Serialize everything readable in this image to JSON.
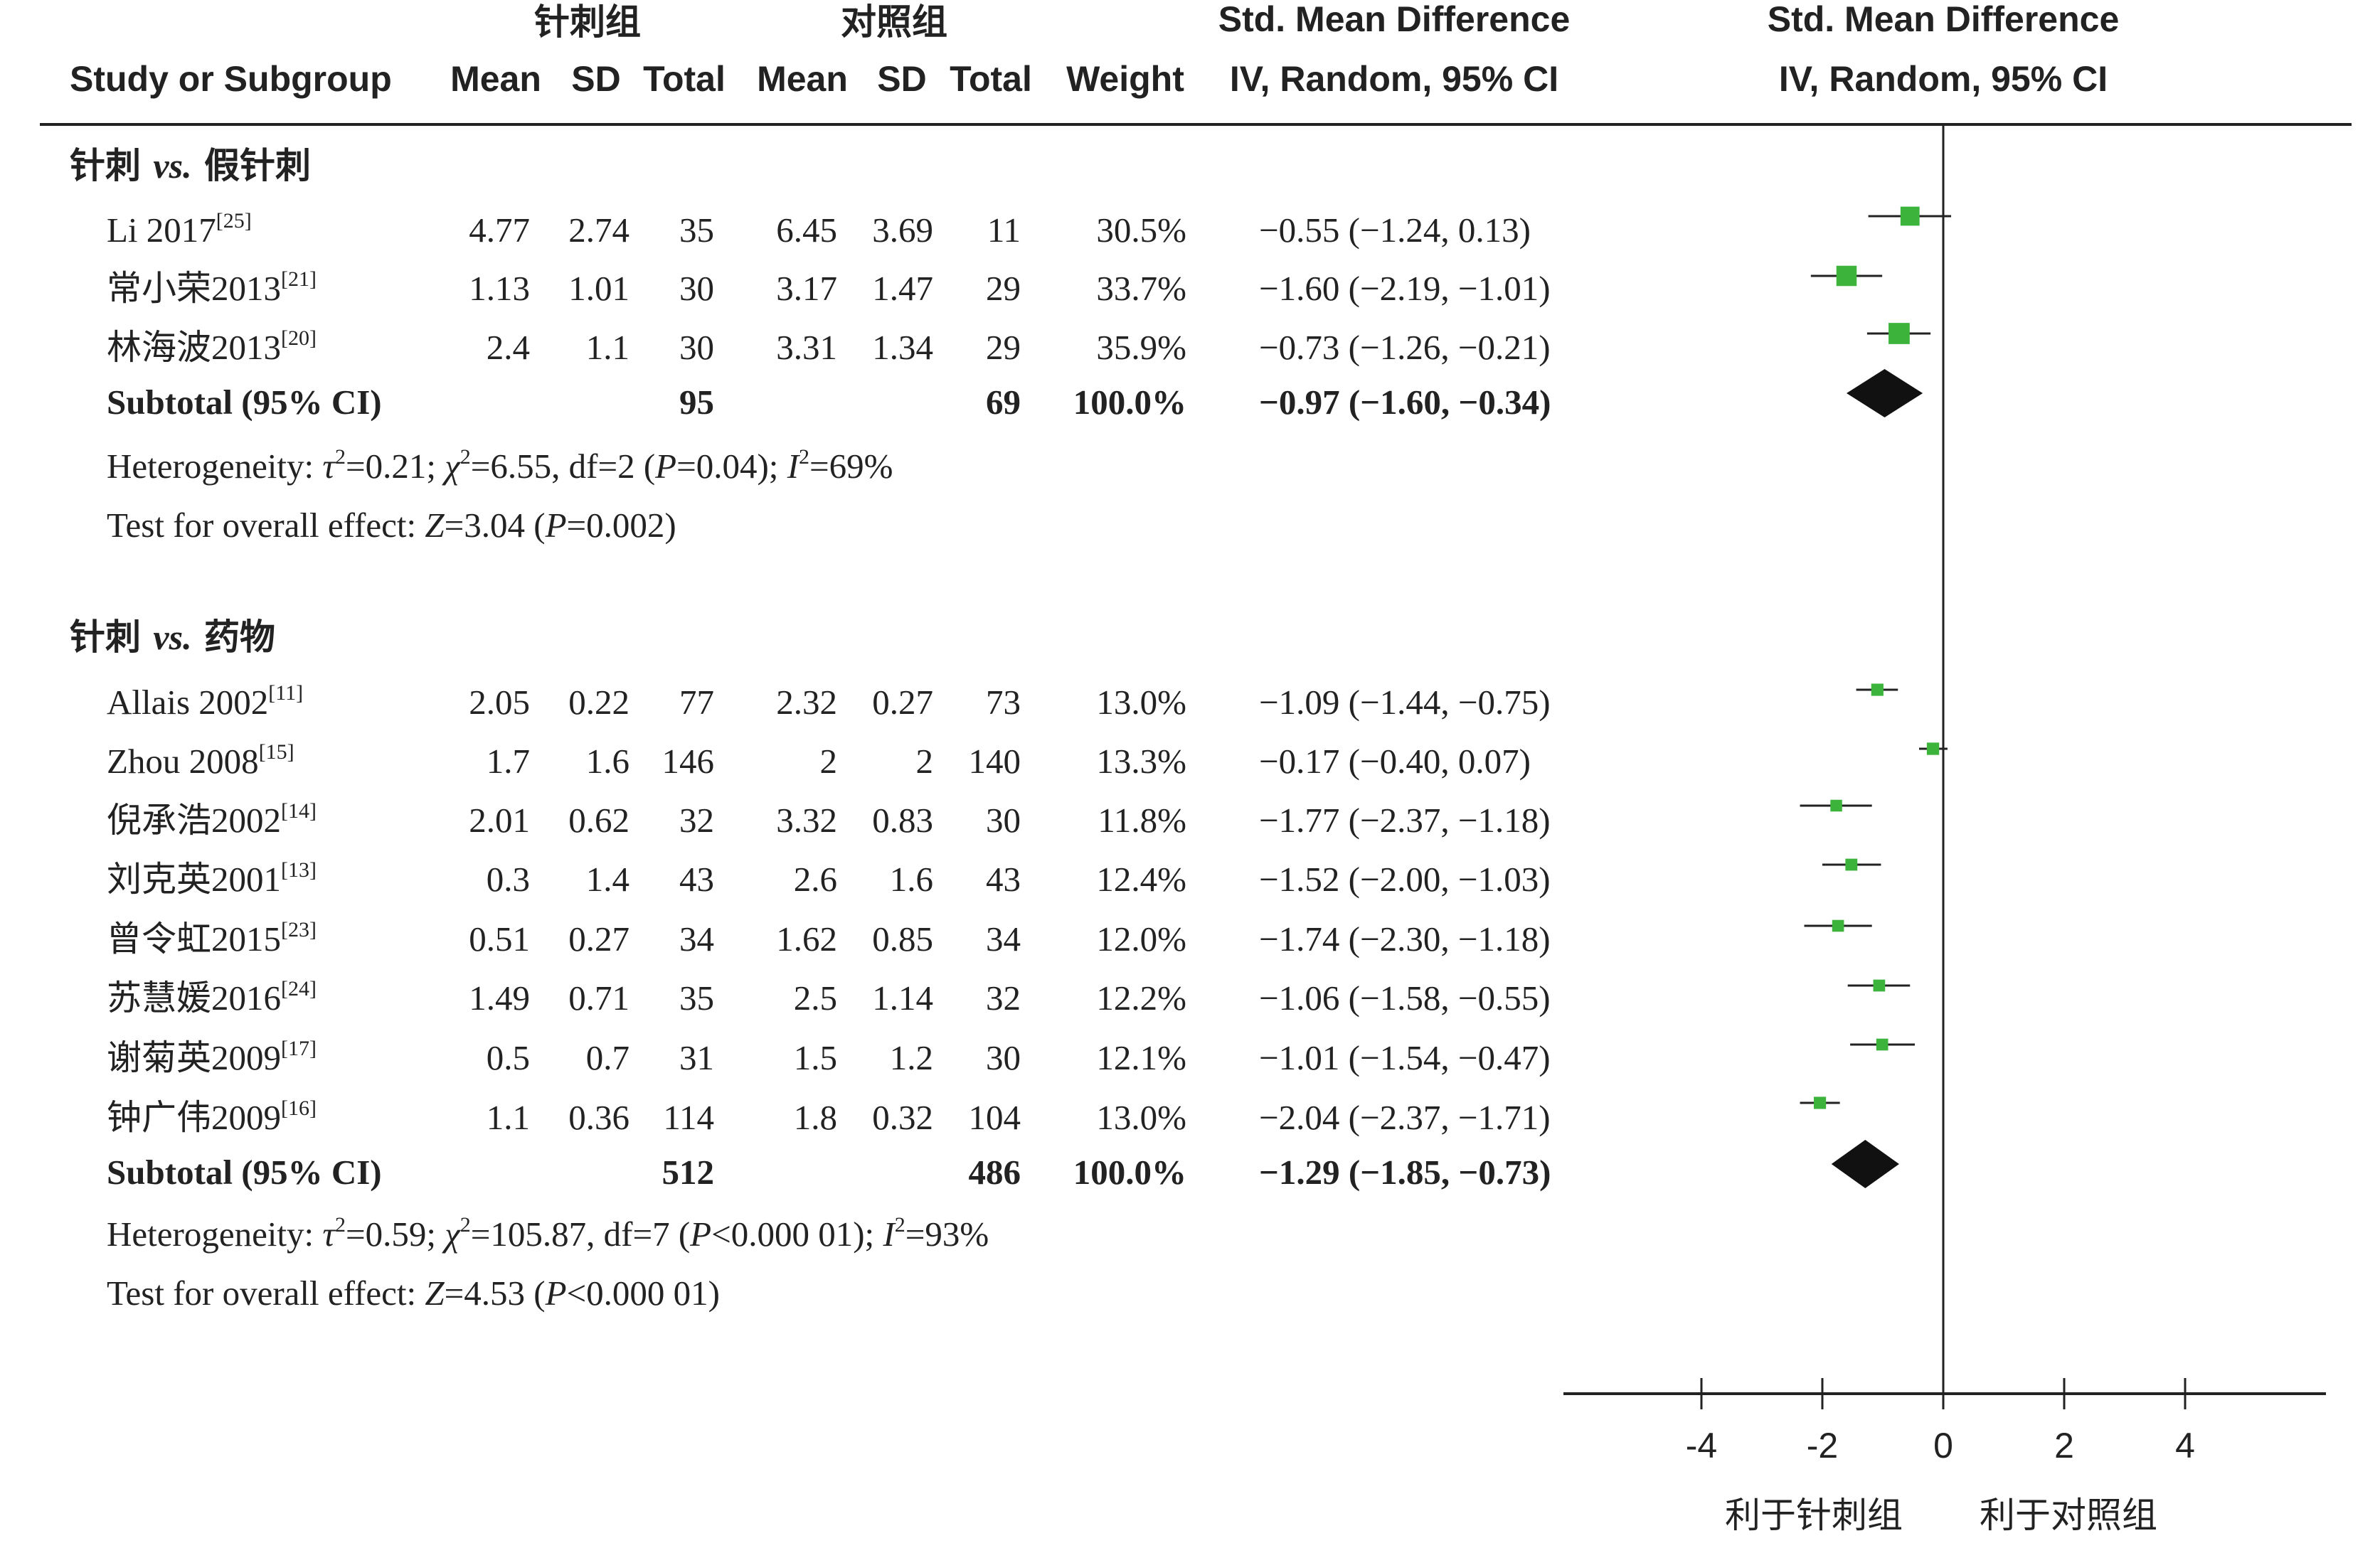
{
  "header": {
    "group_exp": "针刺组",
    "group_ctl": "对照组",
    "smd_left": "Std. Mean Difference",
    "smd_right": "Std. Mean Difference",
    "col_study": "Study or Subgroup",
    "col_mean1": "Mean",
    "col_sd1": "SD",
    "col_total1": "Total",
    "col_mean2": "Mean",
    "col_sd2": "SD",
    "col_total2": "Total",
    "col_weight": "Weight",
    "ci_left": "IV, Random, 95% CI",
    "ci_right": "IV, Random, 95% CI"
  },
  "colors": {
    "marker": "#3cb43c",
    "diamond": "#111111",
    "line": "#222222"
  },
  "chart_data": {
    "type": "forest",
    "axis": {
      "ticks": [
        "-4",
        "-2",
        "0",
        "2",
        "4"
      ],
      "tick_values": [
        -4,
        -2,
        0,
        2,
        4
      ],
      "range": [
        -6.3,
        6.3
      ]
    },
    "favours_left": "利于针刺组",
    "favours_right": "利于对照组",
    "groups": [
      {
        "title_prefix": "针刺",
        "title_vs": "vs.",
        "title_suffix": "假针刺",
        "studies": [
          {
            "name": "Li 2017",
            "ref": "[25]",
            "mean1": "4.77",
            "sd1": "2.74",
            "total1": "35",
            "mean2": "6.45",
            "sd2": "3.69",
            "total2": "11",
            "weight": "30.5%",
            "ci_text": "−0.55 (−1.24, 0.13)",
            "est": -0.55,
            "lo": -1.24,
            "hi": 0.13,
            "w": 30.5
          },
          {
            "name": "常小荣2013",
            "ref": "[21]",
            "mean1": "1.13",
            "sd1": "1.01",
            "total1": "30",
            "mean2": "3.17",
            "sd2": "1.47",
            "total2": "29",
            "weight": "33.7%",
            "ci_text": "−1.60 (−2.19, −1.01)",
            "est": -1.6,
            "lo": -2.19,
            "hi": -1.01,
            "w": 33.7
          },
          {
            "name": "林海波2013",
            "ref": "[20]",
            "mean1": "2.4",
            "sd1": "1.1",
            "total1": "30",
            "mean2": "3.31",
            "sd2": "1.34",
            "total2": "29",
            "weight": "35.9%",
            "ci_text": "−0.73 (−1.26, −0.21)",
            "est": -0.73,
            "lo": -1.26,
            "hi": -0.21,
            "w": 35.9
          }
        ],
        "subtotal": {
          "label": "Subtotal (95% CI)",
          "total1": "95",
          "total2": "69",
          "weight": "100.0%",
          "ci_text": "−0.97 (−1.60, −0.34)",
          "est": -0.97,
          "lo": -1.6,
          "hi": -0.34
        },
        "heterogeneity": {
          "prefix": "Heterogeneity: ",
          "tau_sym": "τ",
          "tau_val": "=0.21; ",
          "chi_sym": "χ",
          "chi_val": "=6.55, df=2 (",
          "p_sym": "P",
          "p_val": "=0.04); ",
          "i_sym": "I",
          "i_val": "=69%"
        },
        "overall": {
          "prefix": "Test for overall effect: ",
          "z_sym": "Z",
          "z_val": "=3.04 (",
          "p_sym": "P",
          "p_val": "=0.002)"
        }
      },
      {
        "title_prefix": "针刺",
        "title_vs": "vs.",
        "title_suffix": "药物",
        "studies": [
          {
            "name": "Allais 2002",
            "ref": "[11]",
            "mean1": "2.05",
            "sd1": "0.22",
            "total1": "77",
            "mean2": "2.32",
            "sd2": "0.27",
            "total2": "73",
            "weight": "13.0%",
            "ci_text": "−1.09 (−1.44, −0.75)",
            "est": -1.09,
            "lo": -1.44,
            "hi": -0.75,
            "w": 13.0
          },
          {
            "name": "Zhou 2008",
            "ref": "[15]",
            "mean1": "1.7",
            "sd1": "1.6",
            "total1": "146",
            "mean2": "2",
            "sd2": "2",
            "total2": "140",
            "weight": "13.3%",
            "ci_text": "−0.17 (−0.40, 0.07)",
            "est": -0.17,
            "lo": -0.4,
            "hi": 0.07,
            "w": 13.3
          },
          {
            "name": "倪承浩2002",
            "ref": "[14]",
            "mean1": "2.01",
            "sd1": "0.62",
            "total1": "32",
            "mean2": "3.32",
            "sd2": "0.83",
            "total2": "30",
            "weight": "11.8%",
            "ci_text": "−1.77 (−2.37, −1.18)",
            "est": -1.77,
            "lo": -2.37,
            "hi": -1.18,
            "w": 11.8
          },
          {
            "name": "刘克英2001",
            "ref": "[13]",
            "mean1": "0.3",
            "sd1": "1.4",
            "total1": "43",
            "mean2": "2.6",
            "sd2": "1.6",
            "total2": "43",
            "weight": "12.4%",
            "ci_text": "−1.52 (−2.00, −1.03)",
            "est": -1.52,
            "lo": -2.0,
            "hi": -1.03,
            "w": 12.4
          },
          {
            "name": "曾令虹2015",
            "ref": "[23]",
            "mean1": "0.51",
            "sd1": "0.27",
            "total1": "34",
            "mean2": "1.62",
            "sd2": "0.85",
            "total2": "34",
            "weight": "12.0%",
            "ci_text": "−1.74 (−2.30, −1.18)",
            "est": -1.74,
            "lo": -2.3,
            "hi": -1.18,
            "w": 12.0
          },
          {
            "name": "苏慧媛2016",
            "ref": "[24]",
            "mean1": "1.49",
            "sd1": "0.71",
            "total1": "35",
            "mean2": "2.5",
            "sd2": "1.14",
            "total2": "32",
            "weight": "12.2%",
            "ci_text": "−1.06 (−1.58, −0.55)",
            "est": -1.06,
            "lo": -1.58,
            "hi": -0.55,
            "w": 12.2
          },
          {
            "name": "谢菊英2009",
            "ref": "[17]",
            "mean1": "0.5",
            "sd1": "0.7",
            "total1": "31",
            "mean2": "1.5",
            "sd2": "1.2",
            "total2": "30",
            "weight": "12.1%",
            "ci_text": "−1.01 (−1.54, −0.47)",
            "est": -1.01,
            "lo": -1.54,
            "hi": -0.47,
            "w": 12.1
          },
          {
            "name": "钟广伟2009",
            "ref": "[16]",
            "mean1": "1.1",
            "sd1": "0.36",
            "total1": "114",
            "mean2": "1.8",
            "sd2": "0.32",
            "total2": "104",
            "weight": "13.0%",
            "ci_text": "−2.04 (−2.37, −1.71)",
            "est": -2.04,
            "lo": -2.37,
            "hi": -1.71,
            "w": 13.0
          }
        ],
        "subtotal": {
          "label": "Subtotal (95% CI)",
          "total1": "512",
          "total2": "486",
          "weight": "100.0%",
          "ci_text": "−1.29 (−1.85, −0.73)",
          "est": -1.29,
          "lo": -1.85,
          "hi": -0.73
        },
        "heterogeneity": {
          "prefix": "Heterogeneity: ",
          "tau_sym": "τ",
          "tau_val": "=0.59; ",
          "chi_sym": "χ",
          "chi_val": "=105.87, df=7 (",
          "p_sym": "P",
          "p_val": "<0.000 01); ",
          "i_sym": "I",
          "i_val": "=93%"
        },
        "overall": {
          "prefix": "Test for overall effect: ",
          "z_sym": "Z",
          "z_val": "=4.53 (",
          "p_sym": "P",
          "p_val": "<0.000 01)"
        }
      }
    ]
  }
}
